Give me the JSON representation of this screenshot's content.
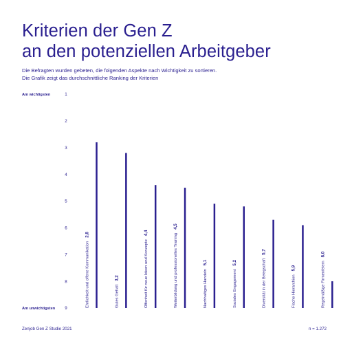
{
  "header": {
    "title_line1": "Kriterien der Gen Z",
    "title_line2": "an den potenziellen Arbeitgeber",
    "subtitle_line1": "Die Befragten wurden gebeten, die folgenden Aspekte nach Wichtigkeit zu sortieren.",
    "subtitle_line2": "Die Grafik zeigt das durchschnittliche Ranking der Kriterien"
  },
  "footer": {
    "source": "Zenjob Gen Z Studie 2021",
    "sample": "n = 1.272"
  },
  "colors": {
    "accent": "#2a1f8f",
    "bar": "#2a1f8f",
    "text": "#2a1f8f",
    "background": "#ffffff"
  },
  "chart_data": {
    "type": "bar",
    "orientation": "vertical",
    "y_axis_inverted": true,
    "ylim": [
      1,
      9
    ],
    "ticks": [
      "1",
      "2",
      "3",
      "4",
      "5",
      "6",
      "7",
      "8",
      "9"
    ],
    "top_tick_label": "Am wichtigsten",
    "bottom_tick_label": "Am unwichtigsten",
    "grid": false,
    "legend": "none",
    "categories": [
      "Ehrlichkeit und offene Kommunikation",
      "Gutes Gehalt",
      "Offenheit für neue Ideen und Konzepte",
      "Weiterbildung und professionelles Training",
      "Nachhaltiges Handeln",
      "Soziales Engagement",
      "Diversität in der Belegschaft",
      "Flache Hierarchien",
      "Regelmäßige Firmenfeiern"
    ],
    "values": [
      2.8,
      3.2,
      4.4,
      4.5,
      5.1,
      5.2,
      5.7,
      5.9,
      8.0
    ],
    "value_labels": [
      "2,8",
      "3,2",
      "4,4",
      "4,5",
      "5,1",
      "5,2",
      "5,7",
      "5,9",
      "8,0"
    ]
  }
}
